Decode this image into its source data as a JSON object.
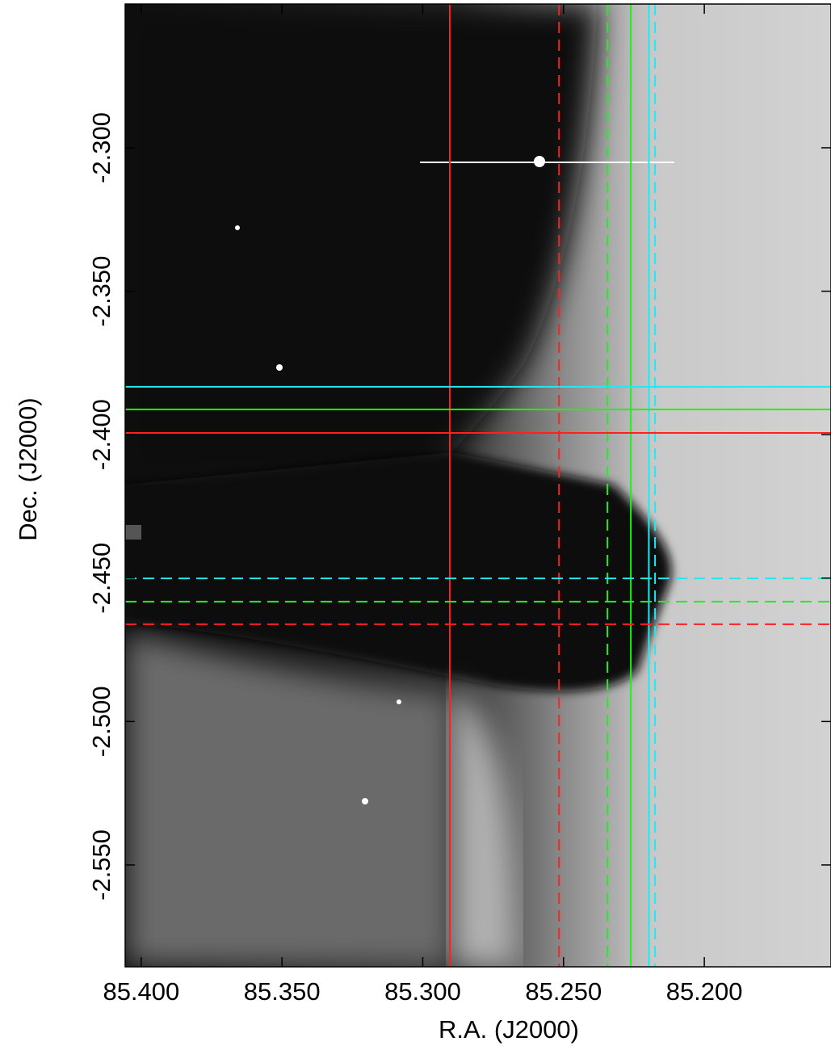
{
  "chart_data": {
    "type": "image-overlay",
    "xlabel": "R.A. (J2000)",
    "ylabel": "Dec. (J2000)",
    "xlim": [
      85.4057,
      85.155
    ],
    "ylim": [
      -2.5855,
      -2.2499
    ],
    "xticks": [
      {
        "value": 85.4,
        "label": "85.400"
      },
      {
        "value": 85.35,
        "label": "85.350"
      },
      {
        "value": 85.3,
        "label": "85.300"
      },
      {
        "value": 85.25,
        "label": "85.250"
      },
      {
        "value": 85.2,
        "label": "85.200"
      }
    ],
    "yticks": [
      {
        "value": -2.3,
        "label": "-2.300"
      },
      {
        "value": -2.35,
        "label": "-2.350"
      },
      {
        "value": -2.4,
        "label": "-2.400"
      },
      {
        "value": -2.45,
        "label": "-2.450"
      },
      {
        "value": -2.5,
        "label": "-2.500"
      },
      {
        "value": -2.55,
        "label": "-2.550"
      }
    ],
    "vlines": [
      {
        "x": 85.2904,
        "color": "#ff2020",
        "dashed": false
      },
      {
        "x": 85.2516,
        "color": "#ff2020",
        "dashed": true
      },
      {
        "x": 85.2344,
        "color": "#22ee22",
        "dashed": true
      },
      {
        "x": 85.2261,
        "color": "#22ee22",
        "dashed": false
      },
      {
        "x": 85.2197,
        "color": "#22e8f0",
        "dashed": false
      },
      {
        "x": 85.2175,
        "color": "#22e8f0",
        "dashed": true
      }
    ],
    "hlines": [
      {
        "y": -2.3833,
        "color": "#22e8f0",
        "dashed": false
      },
      {
        "y": -2.3912,
        "color": "#22ee22",
        "dashed": false
      },
      {
        "y": -2.3994,
        "color": "#ff2020",
        "dashed": false
      },
      {
        "y": -2.4501,
        "color": "#22e8f0",
        "dashed": true
      },
      {
        "y": -2.4582,
        "color": "#22ee22",
        "dashed": true
      },
      {
        "y": -2.4661,
        "color": "#ff2020",
        "dashed": true
      }
    ]
  }
}
